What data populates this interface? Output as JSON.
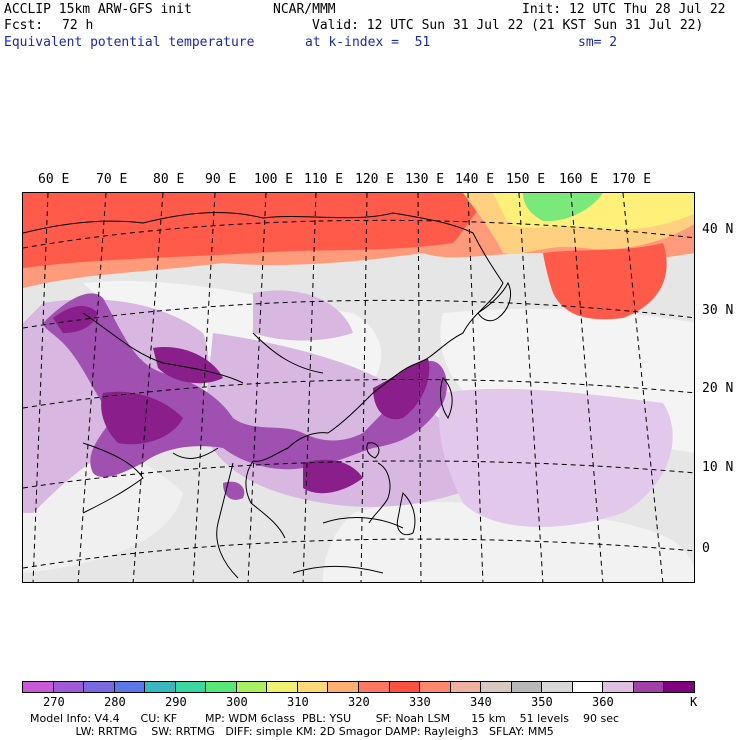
{
  "header": {
    "left_line1": "ACCLIP 15km ARW-GFS init",
    "center_line1": "NCAR/MMM",
    "right_line1": "Init: 12 UTC Thu 28 Jul 22",
    "fcst_label": "Fcst:",
    "fcst_value": "72 h",
    "valid": "Valid: 12 UTC Sun 31 Jul 22 (21 KST Sun 31 Jul 22)",
    "field_name": "Equivalent potential temperature",
    "level": "at k-index =  51",
    "smoothing": "sm= 2"
  },
  "map": {
    "lon_labels": [
      "60 E",
      "70 E",
      "80 E",
      "90 E",
      "100 E",
      "110 E",
      "120 E",
      "130 E",
      "140 E",
      "150 E",
      "160 E",
      "170 E"
    ],
    "lat_labels": [
      "40 N",
      "30 N",
      "20 N",
      "10 N",
      "0"
    ],
    "colors": {
      "background_gray": "#e6e6e6",
      "dark_purple": "#8a1e8a",
      "mid_purple": "#a050b0",
      "light_purple": "#d8b8e0",
      "red": "#ff5a4a",
      "orange": "#ff9a7a",
      "yellow": "#fff07a",
      "green": "#7ae87a"
    }
  },
  "colorbar": {
    "colors": [
      "#c85ad8",
      "#a05ad8",
      "#7a6ae0",
      "#5a78e8",
      "#3ab8c0",
      "#38d8a0",
      "#58e878",
      "#a8f060",
      "#f0f070",
      "#ffd878",
      "#ffb070",
      "#ff7860",
      "#ff5040",
      "#ff8870",
      "#f0b0a0",
      "#d8c8c0",
      "#b8b8b8",
      "#d8d8d8",
      "#ffffff",
      "#e0c0e0",
      "#a040a8",
      "#800080"
    ],
    "labels": [
      "270",
      "280",
      "290",
      "300",
      "310",
      "320",
      "330",
      "340",
      "350",
      "360"
    ],
    "unit": "K"
  },
  "footer": {
    "line1": "Model Info: V4.4      CU: KF        MP: WDM 6class  PBL: YSU       SF: Noah LSM      15 km    51 levels    90 sec",
    "line2": "             LW: RRTMG    SW: RRTMG   DIFF: simple KM: 2D Smagor DAMP: Rayleigh3   SFLAY: MM5"
  }
}
